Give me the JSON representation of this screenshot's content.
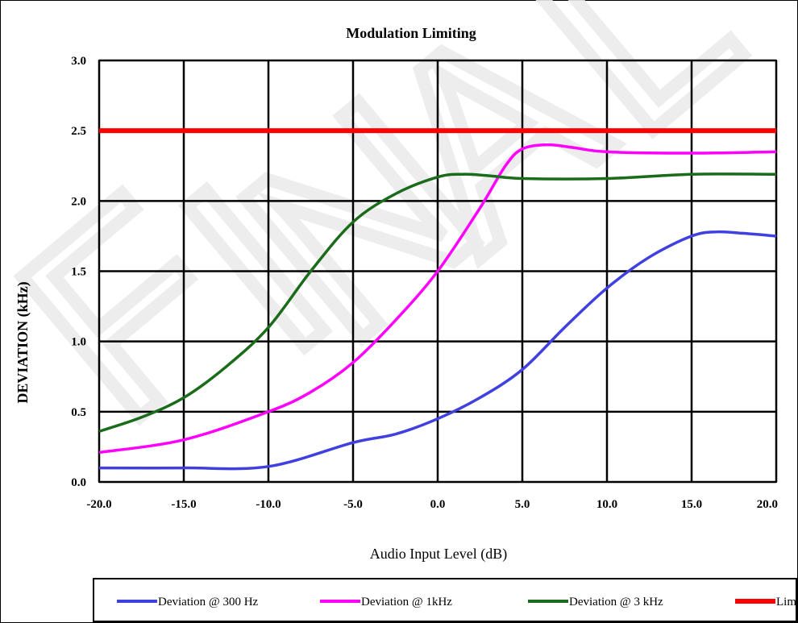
{
  "chart_data": {
    "type": "line",
    "title": "Modulation Limiting",
    "xlabel": "Audio Input Level (dB)",
    "ylabel": "DEVIATION (kHz)",
    "xlim": [
      -20,
      20
    ],
    "ylim": [
      0,
      3
    ],
    "x_ticks": [
      "-20.0",
      "-15.0",
      "-10.0",
      "-5.0",
      "0.0",
      "5.0",
      "10.0",
      "15.0",
      "20.0"
    ],
    "y_ticks": [
      "0.0",
      "0.5",
      "1.0",
      "1.5",
      "2.0",
      "2.5",
      "3.0"
    ],
    "grid": true,
    "legend_position": "bottom",
    "watermark": "FINAL",
    "series": [
      {
        "name": "Deviation @ 300 Hz",
        "color": "#4040e0",
        "points": [
          [
            -20,
            0.1
          ],
          [
            -15,
            0.1
          ],
          [
            -10,
            0.11
          ],
          [
            -5,
            0.28
          ],
          [
            -2.5,
            0.34
          ],
          [
            0,
            0.45
          ],
          [
            2.5,
            0.6
          ],
          [
            5,
            0.8
          ],
          [
            7.5,
            1.1
          ],
          [
            10,
            1.38
          ],
          [
            12.5,
            1.6
          ],
          [
            15,
            1.75
          ],
          [
            16.5,
            1.78
          ],
          [
            18,
            1.77
          ],
          [
            20,
            1.75
          ]
        ]
      },
      {
        "name": "Deviation @ 1kHz",
        "color": "#ff00ff",
        "points": [
          [
            -20,
            0.21
          ],
          [
            -15,
            0.3
          ],
          [
            -10,
            0.5
          ],
          [
            -7.5,
            0.64
          ],
          [
            -5,
            0.85
          ],
          [
            -2.5,
            1.15
          ],
          [
            0,
            1.5
          ],
          [
            2.5,
            1.95
          ],
          [
            4,
            2.25
          ],
          [
            5,
            2.37
          ],
          [
            6.5,
            2.4
          ],
          [
            8,
            2.38
          ],
          [
            10,
            2.35
          ],
          [
            15,
            2.34
          ],
          [
            20,
            2.35
          ]
        ]
      },
      {
        "name": "Deviation @ 3 kHz",
        "color": "#1a6b1a",
        "points": [
          [
            -20,
            0.36
          ],
          [
            -17.5,
            0.46
          ],
          [
            -15,
            0.6
          ],
          [
            -12.5,
            0.82
          ],
          [
            -10,
            1.1
          ],
          [
            -7.5,
            1.5
          ],
          [
            -5,
            1.85
          ],
          [
            -2.5,
            2.05
          ],
          [
            0,
            2.17
          ],
          [
            1.5,
            2.19
          ],
          [
            3,
            2.18
          ],
          [
            5,
            2.16
          ],
          [
            10,
            2.16
          ],
          [
            15,
            2.19
          ],
          [
            20,
            2.19
          ]
        ]
      },
      {
        "name": "Limit",
        "color": "#ff0000",
        "points": [
          [
            -20,
            2.5
          ],
          [
            20,
            2.5
          ]
        ]
      }
    ]
  }
}
